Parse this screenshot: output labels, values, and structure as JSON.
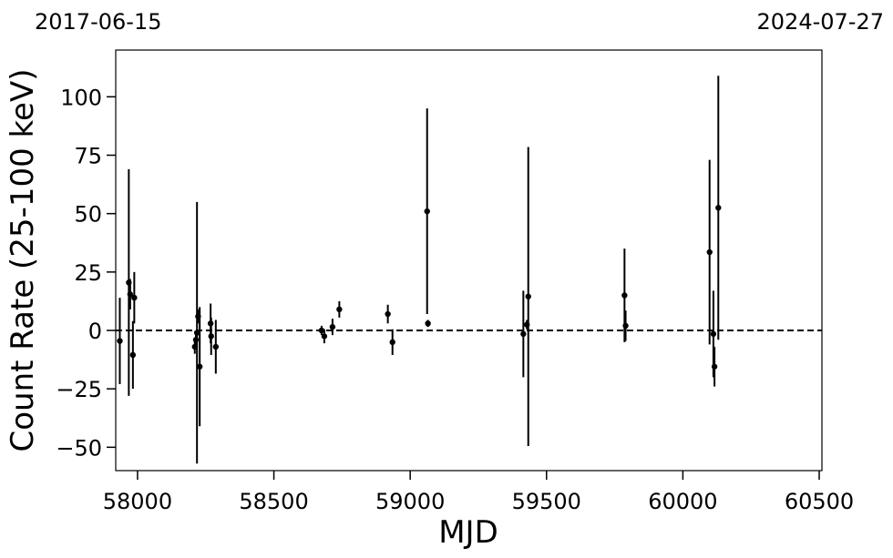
{
  "chart_data": {
    "type": "scatter",
    "title": "",
    "xlabel": "MJD",
    "ylabel": "Count Rate (25-100 keV)",
    "top_left_date": "2017-06-15",
    "top_right_date": "2024-07-27",
    "xlim": [
      57920,
      60510
    ],
    "ylim": [
      -60,
      120
    ],
    "xticks": [
      58000,
      58500,
      59000,
      59500,
      60000,
      60500
    ],
    "xtick_labels": [
      "58000",
      "58500",
      "59000",
      "59500",
      "60000",
      "60500"
    ],
    "yticks": [
      -50,
      -25,
      0,
      25,
      50,
      75,
      100
    ],
    "ytick_labels": [
      "−50",
      "−25",
      "0",
      "25",
      "50",
      "75",
      "100"
    ],
    "reference_line": {
      "y": 0,
      "style": "dashed"
    },
    "grid": false,
    "marker_color": "#000000",
    "points": [
      {
        "x": 57935,
        "y": -4.5,
        "yerr": 18.5
      },
      {
        "x": 57968,
        "y": 20.5,
        "yerr": 48.5
      },
      {
        "x": 57973,
        "y": 15.5,
        "yerr": 6.5
      },
      {
        "x": 57983,
        "y": -10.5,
        "yerr": 14.5
      },
      {
        "x": 57988,
        "y": 14.0,
        "yerr": 11.0
      },
      {
        "x": 58210,
        "y": -7.0,
        "yerr": 3.0
      },
      {
        "x": 58214,
        "y": -4.0,
        "yerr": 3.0
      },
      {
        "x": 58218,
        "y": -1.0,
        "yerr": 56.0
      },
      {
        "x": 58222,
        "y": 6.0,
        "yerr": 3.0
      },
      {
        "x": 58228,
        "y": -15.5,
        "yerr": 25.5
      },
      {
        "x": 58268,
        "y": 3.0,
        "yerr": 8.5
      },
      {
        "x": 58270,
        "y": -2.5,
        "yerr": 8.0
      },
      {
        "x": 58287,
        "y": -7.0,
        "yerr": 11.5
      },
      {
        "x": 58675,
        "y": 0.0,
        "yerr": 2.0
      },
      {
        "x": 58685,
        "y": -2.5,
        "yerr": 3.0
      },
      {
        "x": 58715,
        "y": 1.5,
        "yerr": 3.5
      },
      {
        "x": 58740,
        "y": 9.0,
        "yerr": 3.5
      },
      {
        "x": 58918,
        "y": 7.0,
        "yerr": 4.0
      },
      {
        "x": 58935,
        "y": -5.0,
        "yerr": 5.5
      },
      {
        "x": 59062,
        "y": 51.0,
        "yerr": 44.0
      },
      {
        "x": 59065,
        "y": 3.0,
        "yerr": 1.5
      },
      {
        "x": 59415,
        "y": -1.5,
        "yerr": 18.5
      },
      {
        "x": 59428,
        "y": 2.5,
        "yerr": 2.0
      },
      {
        "x": 59433,
        "y": 14.5,
        "yerr": 64.0
      },
      {
        "x": 59786,
        "y": 15.0,
        "yerr": 20.0
      },
      {
        "x": 59790,
        "y": 2.0,
        "yerr": 6.5
      },
      {
        "x": 60098,
        "y": 33.5,
        "yerr": 39.5
      },
      {
        "x": 60112,
        "y": -1.5,
        "yerr": 18.5
      },
      {
        "x": 60116,
        "y": -15.5,
        "yerr": 8.5
      },
      {
        "x": 60130,
        "y": 52.5,
        "yerr": 56.5
      }
    ]
  }
}
